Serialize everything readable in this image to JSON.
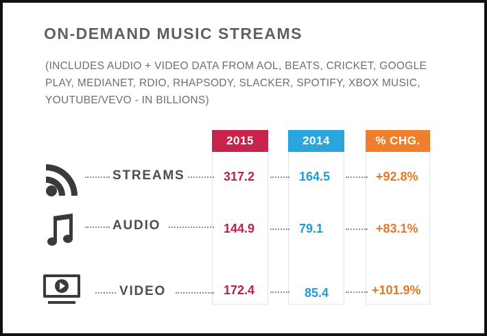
{
  "title": "ON-DEMAND MUSIC STREAMS",
  "subtitle": "(INCLUDES AUDIO + VIDEO DATA FROM AOL, BEATS, CRICKET, GOOGLE PLAY, MEDIANET, RDIO, RHAPSODY, SLACKER, SPOTIFY, XBOX MUSIC, YOUTUBE/VEVO - IN BILLIONS)",
  "columns": {
    "c2015": "2015",
    "c2014": "2014",
    "chg": "% CHG."
  },
  "rows": [
    {
      "label": "STREAMS",
      "v2015": "317.2",
      "v2014": "164.5",
      "chg": "+92.8%",
      "icon": "rss-feed-icon"
    },
    {
      "label": "AUDIO",
      "v2015": "144.9",
      "v2014": "79.1",
      "chg": "+83.1%",
      "icon": "music-note-icon"
    },
    {
      "label": "VIDEO",
      "v2015": "172.4",
      "v2014": "85.4",
      "chg": "+101.9%",
      "icon": "tv-play-icon"
    }
  ],
  "colors": {
    "c2015": "#c8234a",
    "c2014": "#2aa6dd",
    "chg": "#ef7f2c",
    "title": "#5f6062"
  },
  "chart_data": {
    "type": "table",
    "title": "ON-DEMAND MUSIC STREAMS",
    "subtitle": "(INCLUDES AUDIO + VIDEO DATA FROM AOL, BEATS, CRICKET, GOOGLE PLAY, MEDIANET, RDIO, RHAPSODY, SLACKER, SPOTIFY, XBOX MUSIC, YOUTUBE/VEVO - IN BILLIONS)",
    "columns": [
      "2015",
      "2014",
      "% CHG."
    ],
    "categories": [
      "STREAMS",
      "AUDIO",
      "VIDEO"
    ],
    "series": [
      {
        "name": "2015",
        "values": [
          317.2,
          144.9,
          172.4
        ]
      },
      {
        "name": "2014",
        "values": [
          164.5,
          79.1,
          85.4
        ]
      },
      {
        "name": "% CHG.",
        "values": [
          92.8,
          83.1,
          101.9
        ]
      }
    ]
  }
}
